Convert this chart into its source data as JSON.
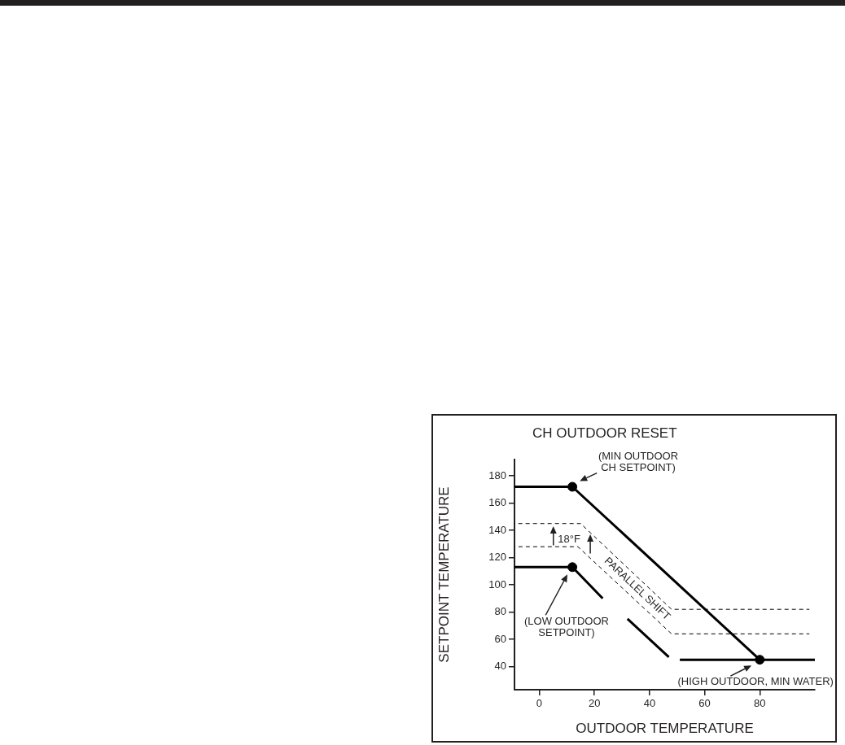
{
  "chart_data": {
    "type": "line",
    "title": "CH OUTDOOR RESET",
    "xlabel": "OUTDOOR TEMPERATURE",
    "ylabel": "SETPOINT TEMPERATURE",
    "xlim": [
      -9,
      100
    ],
    "ylim": [
      23,
      192
    ],
    "xticks": [
      0,
      20,
      40,
      60,
      80
    ],
    "yticks": [
      40,
      60,
      80,
      100,
      120,
      140,
      160,
      180
    ],
    "series": [
      {
        "type": "line",
        "color": "#000000",
        "x": [
          -9,
          12,
          80
        ],
        "values": [
          172,
          172,
          45
        ]
      },
      {
        "type": "line",
        "color": "#000000",
        "x": [
          -9,
          12,
          23,
          27,
          32,
          47,
          49,
          51,
          100
        ],
        "values": [
          113,
          113,
          90,
          null,
          75,
          47,
          null,
          45,
          45
        ]
      },
      {
        "type": "line",
        "color": "#000000",
        "line_style": "dashed",
        "x": [
          -9,
          15,
          48,
          98
        ],
        "values": [
          145,
          145,
          82,
          82
        ]
      },
      {
        "type": "line",
        "color": "#000000",
        "line_style": "dashed",
        "x": [
          -9,
          14,
          48,
          98
        ],
        "values": [
          128,
          128,
          64,
          64
        ]
      },
      {
        "type": "scatter",
        "color": "#000000",
        "marker": "circle",
        "x": [
          12,
          12,
          80
        ],
        "values": [
          172,
          113,
          45
        ]
      }
    ],
    "annotations": [
      "(MIN OUTDOOR CH SETPOINT)",
      "(LOW OUTDOOR SETPOINT)",
      "(HIGH OUTDOOR, MIN WATER)",
      "18°F",
      "PARALLEL SHIFT"
    ]
  }
}
